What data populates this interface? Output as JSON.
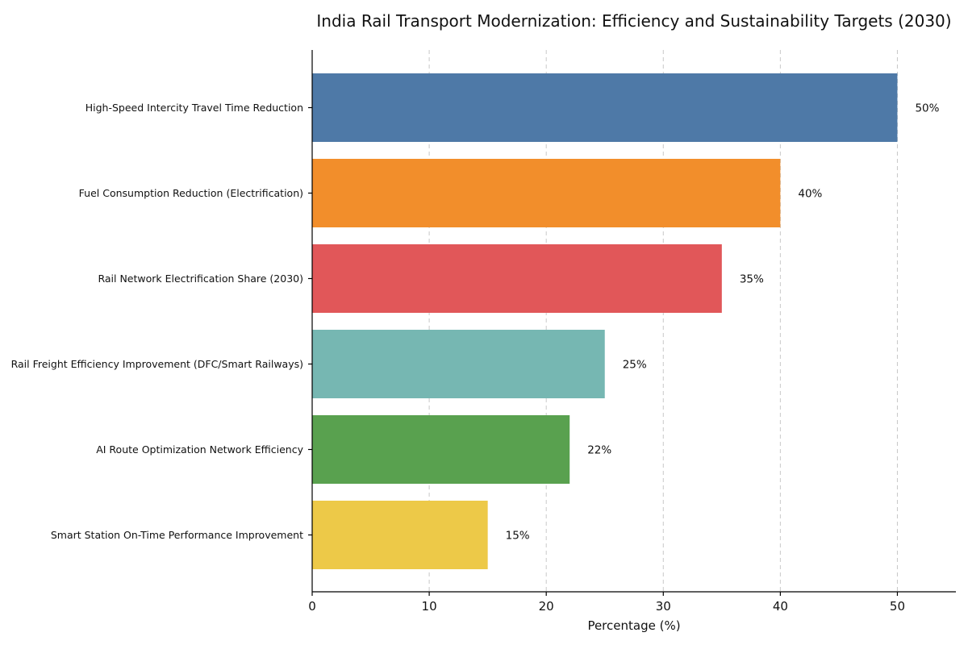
{
  "chart_data": {
    "type": "bar",
    "orientation": "horizontal",
    "title": "India Rail Transport Modernization: Efficiency and Sustainability Targets (2030)",
    "xlabel": "Percentage (%)",
    "ylabel": "",
    "xlim": [
      0,
      55
    ],
    "xticks": [
      0,
      10,
      20,
      30,
      40,
      50
    ],
    "grid": "x-dashed",
    "value_suffix": "%",
    "categories": [
      "High-Speed Intercity Travel Time Reduction",
      "Fuel Consumption Reduction (Electrification)",
      "Rail Network Electrification Share (2030)",
      "Rail Freight Efficiency Improvement (DFC/Smart Railways)",
      "AI Route Optimization Network Efficiency",
      "Smart Station On-Time Performance Improvement"
    ],
    "values": [
      50,
      40,
      35,
      25,
      22,
      15
    ],
    "colors": [
      "#4e79a7",
      "#f28e2b",
      "#e15759",
      "#76b7b2",
      "#59a14f",
      "#edc948"
    ]
  }
}
